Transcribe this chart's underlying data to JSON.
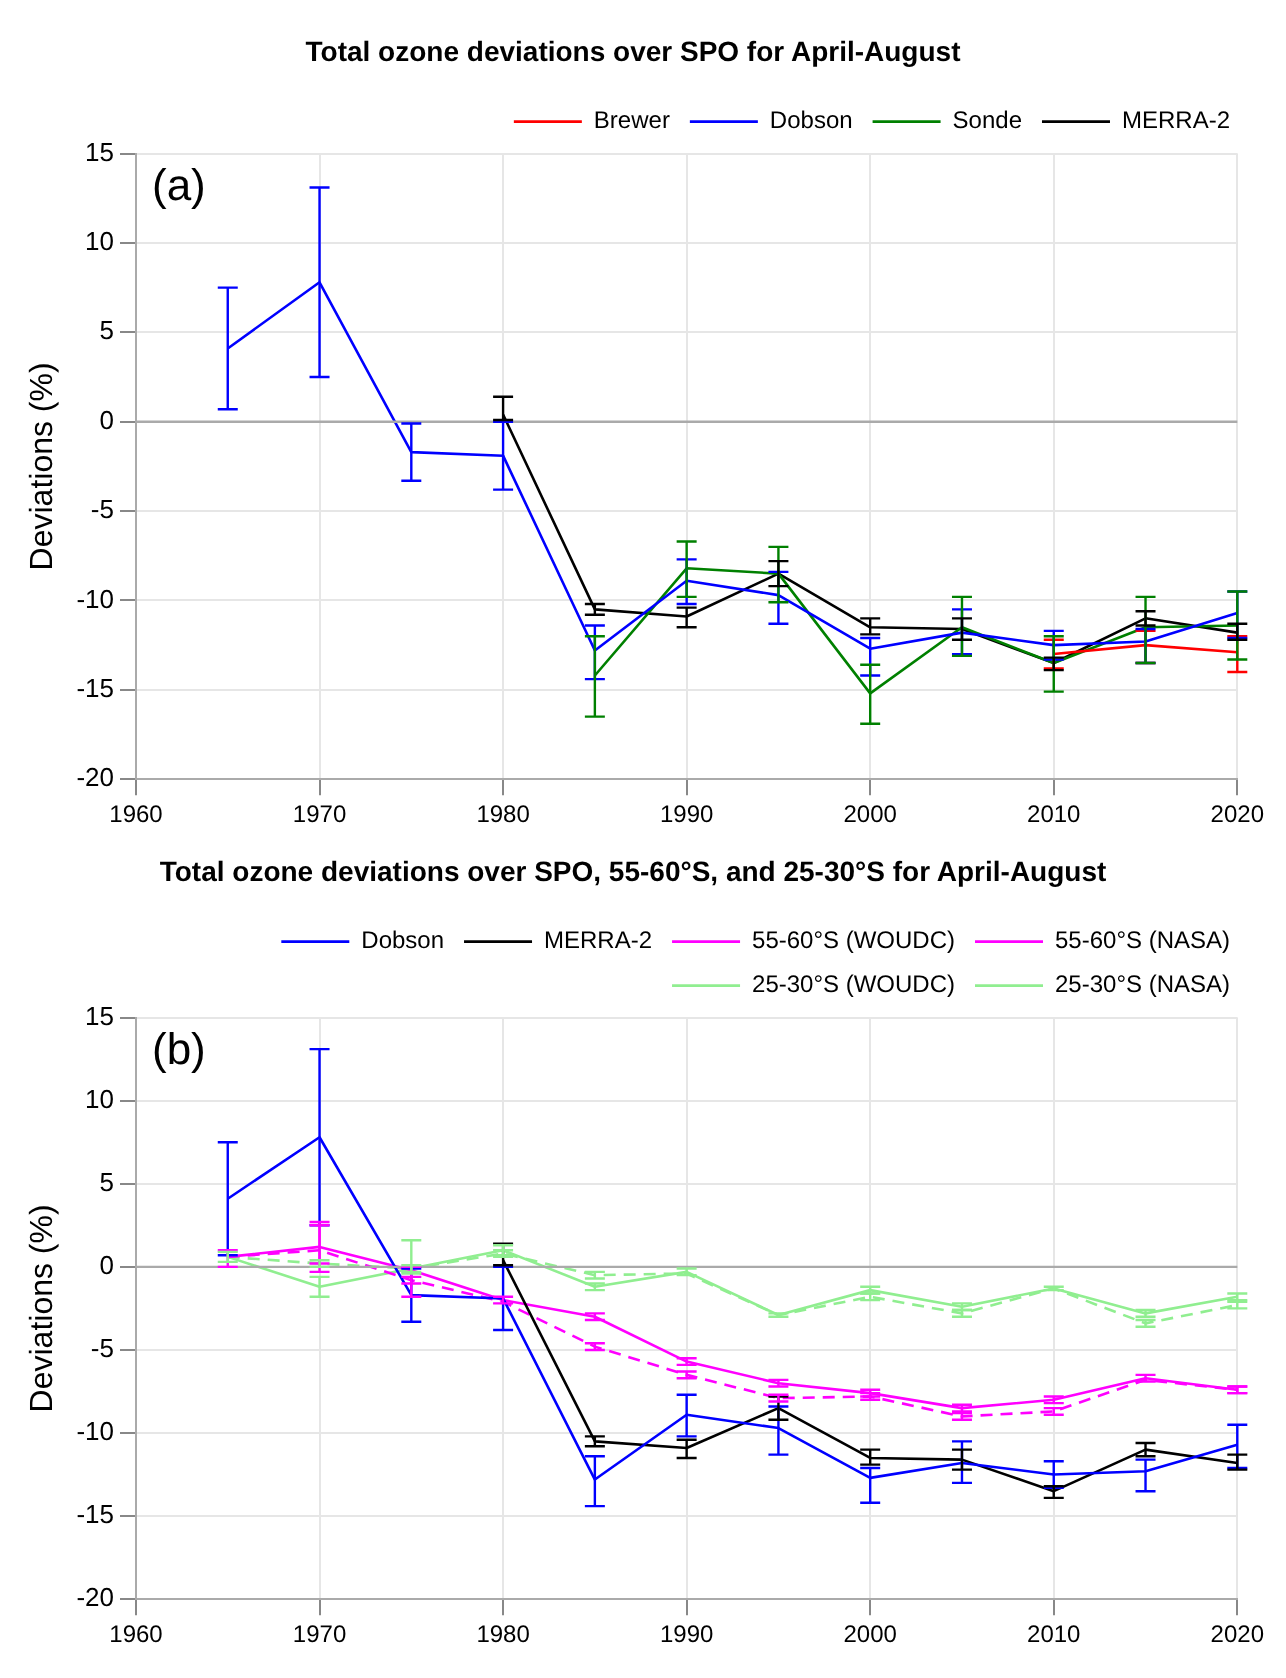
{
  "chart_data": [
    {
      "type": "line",
      "title": "Total ozone deviations over SPO for April-August",
      "ylabel": "Deviations (%)",
      "annotations": [
        "(a)"
      ],
      "x": [
        1965,
        1970,
        1975,
        1980,
        1985,
        1990,
        1995,
        2000,
        2005,
        2010,
        2015,
        2020
      ],
      "series": [
        {
          "name": "Brewer",
          "color": "#ff0000",
          "x": [
            2010,
            2015,
            2020
          ],
          "values": [
            -13.0,
            -12.5,
            -12.9
          ],
          "errors": [
            [
              -13.8,
              -12.2
            ],
            [
              -13.5,
              -11.7
            ],
            [
              -14.0,
              -12.0
            ]
          ]
        },
        {
          "name": "Dobson",
          "color": "#0000ff",
          "values": [
            4.1,
            7.8,
            -1.7,
            -1.9,
            -12.8,
            -8.9,
            -9.7,
            -12.7,
            -11.8,
            -12.5,
            -12.3,
            -10.7
          ],
          "errors": [
            [
              0.7,
              7.5
            ],
            [
              2.5,
              13.1
            ],
            [
              -3.3,
              -0.1
            ],
            [
              -3.8,
              0.0
            ],
            [
              -14.4,
              -11.4
            ],
            [
              -10.2,
              -7.7
            ],
            [
              -11.3,
              -8.4
            ],
            [
              -14.2,
              -12.1
            ],
            [
              -13.0,
              -10.5
            ],
            [
              -13.3,
              -11.7
            ],
            [
              -13.5,
              -11.6
            ],
            [
              -12.1,
              -9.5
            ]
          ]
        },
        {
          "name": "Sonde",
          "color": "#008000",
          "x": [
            1985,
            1990,
            1995,
            2000,
            2005,
            2010,
            2015,
            2020
          ],
          "values": [
            -14.2,
            -8.2,
            -8.5,
            -15.2,
            -11.5,
            -13.5,
            -11.5,
            -11.4
          ],
          "errors": [
            [
              -16.5,
              -12.0
            ],
            [
              -9.8,
              -6.7
            ],
            [
              -10.1,
              -7.0
            ],
            [
              -16.9,
              -13.6
            ],
            [
              -13.1,
              -9.8
            ],
            [
              -15.1,
              -12.0
            ],
            [
              -13.5,
              -9.8
            ],
            [
              -13.3,
              -9.5
            ]
          ]
        },
        {
          "name": "MERRA-2",
          "color": "#000000",
          "x": [
            1980,
            1985,
            1990,
            1995,
            2000,
            2005,
            2010,
            2015,
            2020
          ],
          "values": [
            0.4,
            -10.5,
            -10.9,
            -8.5,
            -11.5,
            -11.6,
            -13.5,
            -11.0,
            -11.8
          ],
          "errors": [
            [
              0.1,
              1.4
            ],
            [
              -10.8,
              -10.2
            ],
            [
              -11.5,
              -10.4
            ],
            [
              -9.2,
              -7.8
            ],
            [
              -11.9,
              -11.0
            ],
            [
              -12.2,
              -11.0
            ],
            [
              -13.9,
              -13.2
            ],
            [
              -11.4,
              -10.6
            ],
            [
              -12.2,
              -11.3
            ]
          ]
        }
      ],
      "xlim": [
        1960,
        2020
      ],
      "xticks": [
        1960,
        1970,
        1980,
        1990,
        2000,
        2010,
        2020
      ],
      "ylim": [
        -20,
        15
      ],
      "yticks": [
        -20,
        -15,
        -10,
        -5,
        0,
        5,
        10,
        15
      ],
      "ref_lines": [
        {
          "axis": "y",
          "value": 0,
          "color": "#aaaaaa"
        }
      ],
      "grid": true,
      "legend": "top",
      "line_style": "solid"
    },
    {
      "type": "line",
      "title": "Total ozone deviations over SPO, 55-60°S, and 25-30°S for April-August",
      "ylabel": "Deviations (%)",
      "annotations": [
        "(b)"
      ],
      "x": [
        1965,
        1970,
        1975,
        1980,
        1985,
        1990,
        1995,
        2000,
        2005,
        2010,
        2015,
        2020
      ],
      "series": [
        {
          "name": "Dobson",
          "color": "#0000ff",
          "values": [
            4.1,
            7.8,
            -1.7,
            -1.9,
            -12.8,
            -8.9,
            -9.7,
            -12.7,
            -11.8,
            -12.5,
            -12.3,
            -10.7
          ],
          "errors": [
            [
              0.7,
              7.5
            ],
            [
              2.5,
              13.1
            ],
            [
              -3.3,
              -0.1
            ],
            [
              -3.8,
              0.0
            ],
            [
              -14.4,
              -11.4
            ],
            [
              -10.2,
              -7.7
            ],
            [
              -11.3,
              -8.4
            ],
            [
              -14.2,
              -12.1
            ],
            [
              -13.0,
              -10.5
            ],
            [
              -13.3,
              -11.7
            ],
            [
              -13.5,
              -11.6
            ],
            [
              -12.1,
              -9.5
            ]
          ]
        },
        {
          "name": "MERRA-2",
          "color": "#000000",
          "x": [
            1980,
            1985,
            1990,
            1995,
            2000,
            2005,
            2010,
            2015,
            2020
          ],
          "values": [
            0.4,
            -10.5,
            -10.9,
            -8.5,
            -11.5,
            -11.6,
            -13.5,
            -11.0,
            -11.8
          ],
          "errors": [
            [
              0.1,
              1.4
            ],
            [
              -10.8,
              -10.2
            ],
            [
              -11.5,
              -10.4
            ],
            [
              -9.2,
              -7.8
            ],
            [
              -11.9,
              -11.0
            ],
            [
              -12.2,
              -11.0
            ],
            [
              -13.9,
              -13.2
            ],
            [
              -11.4,
              -10.6
            ],
            [
              -12.2,
              -11.3
            ]
          ]
        },
        {
          "name": "55-60°S (WOUDC)",
          "color": "#ff00ff",
          "values": [
            0.6,
            1.2,
            -0.2,
            -2.0,
            -3.0,
            -5.7,
            -7.0,
            -7.6,
            -8.5,
            -8.0,
            -6.7,
            -7.4
          ],
          "errors": [
            [
              0.0,
              1.0
            ],
            [
              -0.3,
              2.7
            ],
            [
              -1.8,
              0.0
            ],
            [
              -2.2,
              -1.8
            ],
            [
              -3.2,
              -2.8
            ],
            [
              -5.9,
              -5.5
            ],
            [
              -7.2,
              -6.8
            ],
            [
              -7.8,
              -7.4
            ],
            [
              -8.7,
              -8.3
            ],
            [
              -8.2,
              -7.8
            ],
            [
              -6.9,
              -6.5
            ],
            [
              -7.6,
              -7.2
            ]
          ]
        },
        {
          "name": "55-60°S (NASA)",
          "color": "#ff00ff",
          "line_style": "dashed",
          "values": [
            0.6,
            1.0,
            -0.8,
            -2.1,
            -4.8,
            -6.5,
            -7.9,
            -7.8,
            -9.0,
            -8.7,
            -6.8,
            -7.4
          ],
          "errors": [
            null,
            [
              0.2,
              2.5
            ],
            [
              -1.0,
              -0.6
            ],
            null,
            [
              -5.0,
              -4.6
            ],
            [
              -6.7,
              -6.3
            ],
            [
              -8.1,
              -7.7
            ],
            [
              -8.0,
              -7.6
            ],
            [
              -9.2,
              -8.8
            ],
            [
              -8.9,
              -8.5
            ],
            null,
            [
              -7.6,
              -7.2
            ]
          ]
        },
        {
          "name": "25-30°S (WOUDC)",
          "color": "#90ee90",
          "values": [
            0.6,
            -1.2,
            -0.1,
            1.0,
            -1.2,
            -0.3,
            -2.9,
            -1.4,
            -2.4,
            -1.3,
            -2.8,
            -1.8
          ],
          "errors": [
            [
              0.3,
              0.9
            ],
            [
              -1.8,
              -0.6
            ],
            [
              -0.4,
              1.6
            ],
            [
              0.7,
              1.3
            ],
            [
              -1.4,
              -1.0
            ],
            [
              -0.5,
              -0.1
            ],
            [
              -3.0,
              -2.8
            ],
            [
              -1.6,
              -1.2
            ],
            [
              -2.6,
              -2.2
            ],
            [
              -1.4,
              -1.2
            ],
            [
              -3.0,
              -2.6
            ],
            [
              -2.0,
              -1.6
            ]
          ]
        },
        {
          "name": "25-30°S (NASA)",
          "color": "#90ee90",
          "line_style": "dashed",
          "values": [
            0.6,
            0.2,
            -0.1,
            0.8,
            -0.5,
            -0.4,
            -2.9,
            -1.8,
            -2.8,
            -1.3,
            -3.4,
            -2.3
          ],
          "errors": [
            null,
            [
              0.0,
              0.4
            ],
            [
              -0.3,
              0.1
            ],
            [
              0.6,
              1.0
            ],
            [
              -0.7,
              -0.3
            ],
            null,
            null,
            [
              -2.0,
              -1.6
            ],
            [
              -3.0,
              -2.6
            ],
            null,
            [
              -3.6,
              -3.2
            ],
            [
              -2.5,
              -2.1
            ]
          ]
        }
      ],
      "xlim": [
        1960,
        2020
      ],
      "xticks": [
        1960,
        1970,
        1980,
        1990,
        2000,
        2010,
        2020
      ],
      "ylim": [
        -20,
        15
      ],
      "yticks": [
        -20,
        -15,
        -10,
        -5,
        0,
        5,
        10,
        15
      ],
      "ref_lines": [
        {
          "axis": "y",
          "value": 0,
          "color": "#aaaaaa"
        }
      ],
      "grid": true,
      "legend": "top",
      "line_style": "solid"
    }
  ]
}
